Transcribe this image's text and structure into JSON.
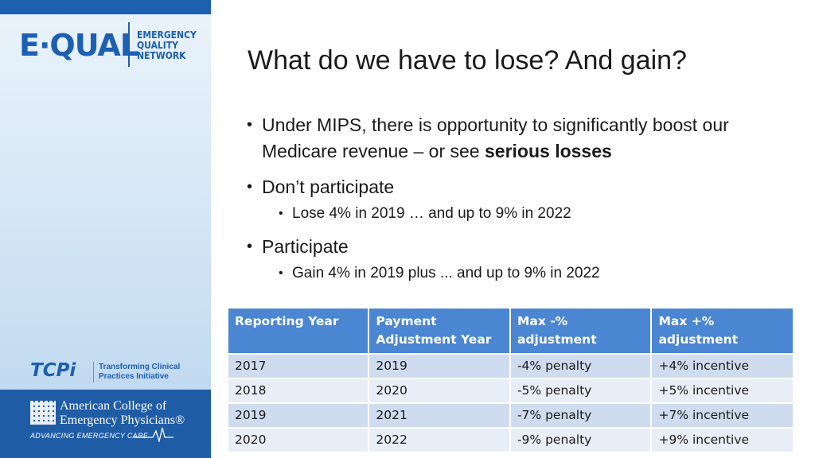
{
  "sidebar": {
    "logo": {
      "wordmark": "E·QUAL",
      "network_lines": [
        "EMERGENCY",
        "QUALITY",
        "NETWORK"
      ]
    },
    "tcpi": {
      "mark": "TCPi",
      "text_lines": [
        "Transforming Clinical",
        "Practices Initiative"
      ]
    },
    "acep": {
      "name_lines": [
        "American College of",
        "Emergency Physicians®"
      ],
      "tagline": "ADVANCING EMERGENCY CARE"
    },
    "colors": {
      "brand_blue": "#1d5fb0",
      "band_blue": "#1f5ca6"
    }
  },
  "slide": {
    "title": "What do we have to lose? And gain?",
    "bullets": {
      "b1_text_a": "Under MIPS, there is opportunity to significantly boost our Medicare revenue – or see ",
      "b1_text_bold": "serious losses",
      "b2": "Don’t participate",
      "b2_sub": "Lose 4% in 2019 … and up to 9% in 2022",
      "b3": "Participate",
      "b3_sub": "Gain 4% in 2019 plus ... and up to 9% in 2022"
    }
  },
  "table": {
    "headers": [
      "Reporting Year",
      "Payment Adjustment Year",
      "Max -% adjustment",
      "Max +% adjustment"
    ],
    "rows": [
      [
        "2017",
        "2019",
        "-4% penalty",
        "+4% incentive"
      ],
      [
        "2018",
        "2020",
        "-5% penalty",
        "+5% incentive"
      ],
      [
        "2019",
        "2021",
        "-7% penalty",
        "+7% incentive"
      ],
      [
        "2020",
        "2022",
        "-9% penalty",
        "+9% incentive"
      ]
    ],
    "colors": {
      "header": "#4a86d1",
      "row_dark": "#cfdcef",
      "row_light": "#e8eef8"
    }
  }
}
